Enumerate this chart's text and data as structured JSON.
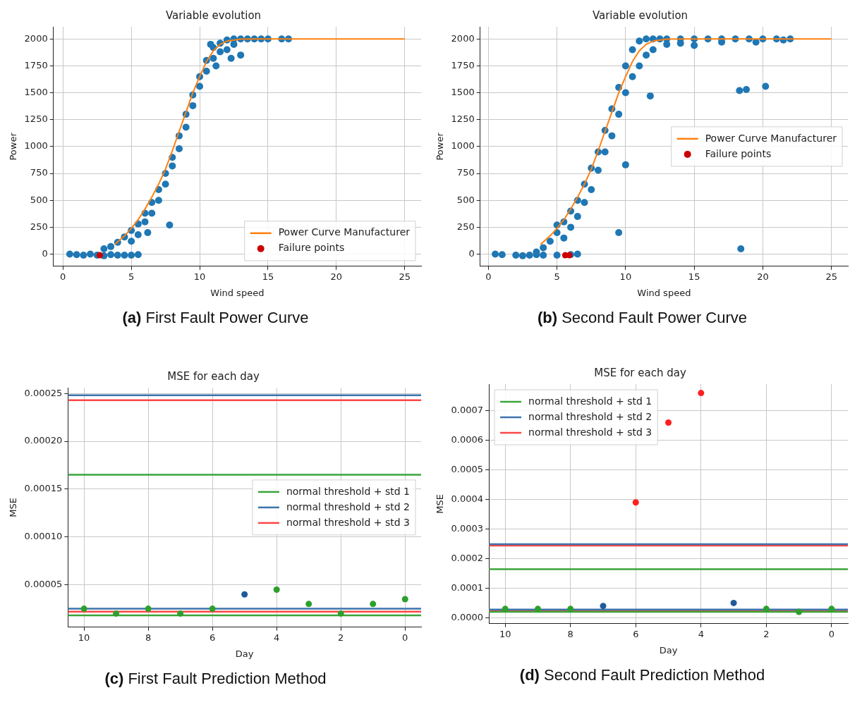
{
  "chart_data": [
    {
      "type": "scatter",
      "title": "Variable evolution",
      "xlabel": "Wind speed",
      "ylabel": "Power",
      "annotations": [
        "(a) First Fault Power Curve"
      ],
      "xlim": [
        -0.7,
        26.2
      ],
      "ylim": [
        -113,
        2113
      ],
      "xticks": [
        0,
        5,
        10,
        15,
        20,
        25
      ],
      "yticks": [
        0,
        250,
        500,
        750,
        1000,
        1250,
        1500,
        1750,
        2000
      ],
      "grid": true,
      "legend": "bottom right",
      "marker": "circle",
      "series": [
        {
          "color": "#1f77b4",
          "x": [
            0.5,
            1,
            1.5,
            2,
            2.5,
            3,
            3.5,
            4,
            4.5,
            5,
            5.5,
            3,
            3.5,
            4,
            4.5,
            5,
            5,
            5.5,
            5.5,
            6,
            6,
            6.2,
            6.5,
            6.5,
            7,
            7,
            7.5,
            7.5,
            7.8,
            8,
            8,
            8.5,
            8.5,
            9,
            9,
            9.5,
            9.5,
            10,
            10,
            10.5,
            10.5,
            11,
            11,
            11.5,
            11.5,
            12,
            12,
            12.5,
            12.5,
            13,
            13,
            13.5,
            14,
            14.5,
            15,
            16,
            16.5,
            10.8,
            11.2,
            12.3
          ],
          "values": [
            0,
            -5,
            -10,
            0,
            -10,
            -15,
            -5,
            -10,
            -10,
            -10,
            -5,
            50,
            70,
            110,
            160,
            220,
            120,
            280,
            180,
            380,
            300,
            200,
            480,
            380,
            600,
            500,
            750,
            650,
            270,
            900,
            820,
            1100,
            980,
            1300,
            1180,
            1480,
            1380,
            1650,
            1560,
            1800,
            1700,
            1920,
            1820,
            1960,
            1880,
            1990,
            1900,
            2000,
            1950,
            2000,
            1850,
            2000,
            2000,
            2000,
            2000,
            2000,
            2000,
            1950,
            1750,
            1820
          ]
        },
        {
          "type": "line",
          "marker": "none",
          "name": "Power Curve Manufacturer",
          "color": "#ff7f0e",
          "x": [
            3.8,
            4.5,
            5,
            5.5,
            6,
            6.5,
            7,
            7.5,
            8,
            8.5,
            9,
            9.5,
            10,
            10.5,
            11,
            11.5,
            12,
            13,
            14,
            15,
            25
          ],
          "values": [
            90,
            170,
            240,
            320,
            420,
            530,
            650,
            790,
            960,
            1140,
            1320,
            1500,
            1650,
            1790,
            1890,
            1950,
            1980,
            1998,
            2000,
            2000,
            2000
          ]
        },
        {
          "name": "Failure points",
          "color": "#cc0000",
          "x": [
            2.7
          ],
          "values": [
            -10
          ]
        }
      ]
    },
    {
      "type": "scatter",
      "title": "Variable evolution",
      "xlabel": "Wind speed",
      "ylabel": "Power",
      "annotations": [
        "(b) Second Fault Power Curve"
      ],
      "xlim": [
        -0.6,
        26.2
      ],
      "ylim": [
        -113,
        2113
      ],
      "xticks": [
        0,
        5,
        10,
        15,
        20,
        25
      ],
      "yticks": [
        0,
        250,
        500,
        750,
        1000,
        1250,
        1500,
        1750,
        2000
      ],
      "grid": true,
      "legend": "right",
      "marker": "circle",
      "series": [
        {
          "color": "#1f77b4",
          "x": [
            0.5,
            1,
            2,
            2.5,
            3,
            3.5,
            4,
            5,
            6,
            6.5,
            3.5,
            4,
            4.5,
            5,
            5,
            5.5,
            5.5,
            6,
            6,
            6.5,
            6.5,
            7,
            7,
            7.5,
            7.5,
            8,
            8,
            8.5,
            8.5,
            9,
            9,
            9.5,
            9.5,
            10,
            10,
            10.5,
            10.5,
            11,
            11,
            11.5,
            11.5,
            12,
            12,
            12.5,
            13,
            13,
            14,
            14,
            15,
            15,
            16,
            17,
            17,
            18,
            19,
            19.5,
            20,
            21,
            21.5,
            22,
            11.8,
            18.3,
            18.8,
            20.2,
            10,
            9.5,
            18.4
          ],
          "values": [
            0,
            -5,
            -10,
            -15,
            -10,
            -5,
            -10,
            -10,
            -5,
            0,
            20,
            60,
            120,
            200,
            270,
            300,
            150,
            400,
            250,
            500,
            350,
            650,
            480,
            800,
            600,
            950,
            780,
            1150,
            950,
            1350,
            1100,
            1550,
            1300,
            1750,
            1500,
            1900,
            1650,
            1980,
            1750,
            2000,
            1850,
            2000,
            1900,
            2000,
            1950,
            2000,
            2000,
            1960,
            2000,
            1940,
            2000,
            2000,
            1970,
            2000,
            2000,
            1970,
            2000,
            2000,
            1990,
            2000,
            1470,
            1520,
            1530,
            1560,
            830,
            200,
            50
          ]
        },
        {
          "type": "line",
          "marker": "none",
          "name": "Power Curve Manufacturer",
          "color": "#ff7f0e",
          "x": [
            3.8,
            4.5,
            5,
            5.5,
            6,
            6.5,
            7,
            7.5,
            8,
            8.5,
            9,
            9.5,
            10,
            10.5,
            11,
            11.5,
            12,
            13,
            14,
            15,
            25
          ],
          "values": [
            90,
            170,
            240,
            320,
            420,
            530,
            650,
            790,
            960,
            1140,
            1320,
            1500,
            1650,
            1790,
            1890,
            1950,
            1980,
            1998,
            2000,
            2000,
            2000
          ]
        },
        {
          "name": "Failure points",
          "color": "#cc0000",
          "x": [
            5.6,
            5.9
          ],
          "values": [
            -10,
            -10
          ]
        }
      ]
    },
    {
      "type": "scatter",
      "title": "MSE for each day",
      "xlabel": "Day",
      "ylabel": "MSE",
      "annotations": [
        "(c) First Fault Prediction Method"
      ],
      "xlim": [
        10.5,
        -0.5
      ],
      "ylim": [
        5.7e-06,
        0.000256
      ],
      "xticks": [
        10,
        8,
        6,
        4,
        2,
        0
      ],
      "yticks": [
        {
          "value": 5e-05,
          "label": "0.00005"
        },
        {
          "value": 0.0001,
          "label": "0.00010"
        },
        {
          "value": 0.00015,
          "label": "0.00015"
        },
        {
          "value": 0.0002,
          "label": "0.00020"
        },
        {
          "value": 0.00025,
          "label": "0.00025"
        }
      ],
      "grid": true,
      "legend": "right",
      "marker": "circle",
      "series": [
        {
          "x": [
            10,
            9,
            8,
            7,
            6,
            5,
            4,
            3,
            2,
            1,
            0
          ],
          "values": [
            2.5e-05,
            2e-05,
            2.5e-05,
            2e-05,
            2.5e-05,
            4e-05,
            4.5e-05,
            3e-05,
            2e-05,
            3e-05,
            3.5e-05
          ],
          "colors": [
            "#2ca02c",
            "#2ca02c",
            "#2ca02c",
            "#2ca02c",
            "#2ca02c",
            "#1f5a9a",
            "#2ca02c",
            "#2ca02c",
            "#2ca02c",
            "#2ca02c",
            "#2ca02c"
          ]
        }
      ],
      "ref_lines": [
        {
          "axis": "y",
          "value": 0.000165,
          "label": "normal threshold + std 1",
          "color": "#3aa53a"
        },
        {
          "axis": "y",
          "value": 0.000248,
          "label": "normal threshold + std 2",
          "color": "#3d72ad"
        },
        {
          "axis": "y",
          "value": 0.000243,
          "label": "normal threshold + std 3",
          "color": "#ff4545"
        },
        {
          "axis": "y",
          "value": 1.8e-05,
          "color": "#3aa53a"
        },
        {
          "axis": "y",
          "value": 2.5e-05,
          "color": "#3d72ad"
        },
        {
          "axis": "y",
          "value": 2.2e-05,
          "color": "#ff4545"
        }
      ]
    },
    {
      "type": "scatter",
      "title": "MSE for each day",
      "xlabel": "Day",
      "ylabel": "MSE",
      "annotations": [
        "(d) Second Fault Prediction Method"
      ],
      "xlim": [
        10.5,
        -0.5
      ],
      "ylim": [
        -2e-05,
        0.00079
      ],
      "xticks": [
        10,
        8,
        6,
        4,
        2,
        0
      ],
      "yticks": [
        {
          "value": 0,
          "label": "0.0000"
        },
        {
          "value": 0.0001,
          "label": "0.0001"
        },
        {
          "value": 0.0002,
          "label": "0.0002"
        },
        {
          "value": 0.0003,
          "label": "0.0003"
        },
        {
          "value": 0.0004,
          "label": "0.0004"
        },
        {
          "value": 0.0005,
          "label": "0.0005"
        },
        {
          "value": 0.0006,
          "label": "0.0006"
        },
        {
          "value": 0.0007,
          "label": "0.0007"
        }
      ],
      "grid": true,
      "legend": "top left",
      "marker": "circle",
      "series": [
        {
          "x": [
            10,
            9,
            8,
            7,
            6,
            5,
            4,
            3,
            2,
            1,
            0
          ],
          "values": [
            3e-05,
            3e-05,
            3e-05,
            4e-05,
            0.00039,
            0.00066,
            0.00076,
            5e-05,
            3e-05,
            2e-05,
            3e-05
          ],
          "colors": [
            "#2ca02c",
            "#2ca02c",
            "#2ca02c",
            "#1f5a9a",
            "#ff2020",
            "#ff2020",
            "#ff2020",
            "#1f5a9a",
            "#2ca02c",
            "#2ca02c",
            "#2ca02c"
          ]
        }
      ],
      "ref_lines": [
        {
          "axis": "y",
          "value": 0.000164,
          "label": "normal threshold + std 1",
          "color": "#3aa53a"
        },
        {
          "axis": "y",
          "value": 0.000249,
          "label": "normal threshold + std 2",
          "color": "#3d72ad"
        },
        {
          "axis": "y",
          "value": 0.000244,
          "label": "normal threshold + std 3",
          "color": "#ff4545"
        },
        {
          "axis": "y",
          "value": 2e-05,
          "color": "#3aa53a"
        },
        {
          "axis": "y",
          "value": 2.8e-05,
          "color": "#3d72ad"
        },
        {
          "axis": "y",
          "value": 2.4e-05,
          "color": "#ff4545"
        }
      ]
    }
  ]
}
